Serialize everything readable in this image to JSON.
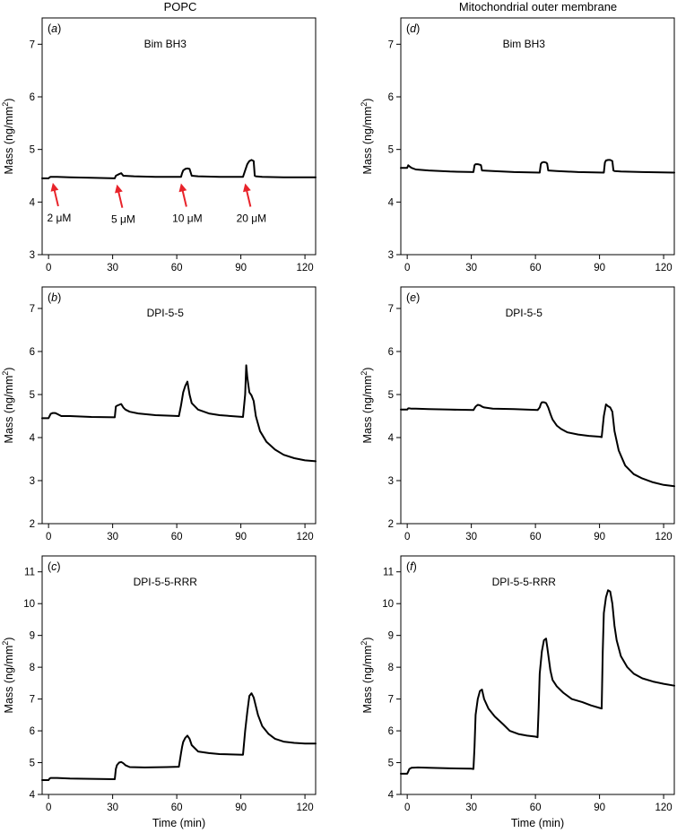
{
  "figure": {
    "col_titles": [
      "POPC",
      "Mitochondrial outer membrane"
    ]
  },
  "chart_data": [
    {
      "id": "a",
      "type": "line",
      "label": "(a)",
      "title": "Bim BH3",
      "xlabel": "",
      "ylabel": "Mass (ng/mm²)",
      "xlim": [
        -3,
        125
      ],
      "ylim": [
        3,
        7.5
      ],
      "xticks": [
        0,
        30,
        60,
        90,
        120
      ],
      "yticks": [
        3,
        4,
        5,
        6,
        7
      ],
      "annotations": [
        {
          "text": "2 μM",
          "x": 2,
          "y": 4.45
        },
        {
          "text": "5 μM",
          "x": 32,
          "y": 4.42
        },
        {
          "text": "10 μM",
          "x": 62,
          "y": 4.44
        },
        {
          "text": "20 μM",
          "x": 92,
          "y": 4.44
        }
      ],
      "annotation_color": "#e8232a",
      "x": [
        -3,
        0,
        0.5,
        1,
        2,
        4,
        10,
        20,
        31,
        31.5,
        32,
        33,
        34,
        35,
        40,
        50,
        62,
        62.5,
        63,
        64,
        65,
        66,
        67,
        70,
        80,
        91,
        92,
        93,
        94,
        95,
        96,
        96.5,
        97,
        100,
        110,
        125
      ],
      "y": [
        4.45,
        4.45,
        4.47,
        4.48,
        4.48,
        4.48,
        4.47,
        4.46,
        4.45,
        4.5,
        4.51,
        4.53,
        4.55,
        4.5,
        4.49,
        4.48,
        4.48,
        4.55,
        4.6,
        4.63,
        4.64,
        4.63,
        4.5,
        4.49,
        4.48,
        4.48,
        4.6,
        4.72,
        4.78,
        4.8,
        4.78,
        4.5,
        4.49,
        4.48,
        4.47,
        4.47
      ]
    },
    {
      "id": "b",
      "type": "line",
      "label": "(b)",
      "title": "DPI-5-5",
      "xlabel": "",
      "ylabel": "Mass (ng/mm²)",
      "xlim": [
        -3,
        125
      ],
      "ylim": [
        2,
        7.5
      ],
      "xticks": [
        0,
        30,
        60,
        90,
        120
      ],
      "yticks": [
        2,
        3,
        4,
        5,
        6,
        7
      ],
      "x": [
        -3,
        0,
        0.5,
        1,
        2,
        3,
        4,
        6,
        10,
        20,
        31,
        31.5,
        32,
        33,
        34,
        35,
        36,
        38,
        42,
        50,
        61,
        62,
        62.5,
        63,
        64,
        65,
        66,
        67,
        70,
        75,
        80,
        91,
        92,
        92.5,
        93,
        94,
        95,
        96,
        97,
        99,
        102,
        106,
        110,
        115,
        120,
        125
      ],
      "y": [
        4.45,
        4.45,
        4.5,
        4.55,
        4.57,
        4.57,
        4.55,
        4.5,
        4.5,
        4.48,
        4.47,
        4.72,
        4.74,
        4.76,
        4.78,
        4.7,
        4.65,
        4.6,
        4.56,
        4.52,
        4.5,
        4.75,
        4.9,
        5.05,
        5.2,
        5.3,
        5.0,
        4.8,
        4.65,
        4.56,
        4.52,
        4.48,
        5.0,
        5.68,
        5.4,
        5.05,
        4.98,
        4.85,
        4.5,
        4.15,
        3.9,
        3.72,
        3.6,
        3.52,
        3.47,
        3.45
      ]
    },
    {
      "id": "c",
      "type": "line",
      "label": "(c)",
      "title": "DPI-5-5-RRR",
      "xlabel": "Time (min)",
      "ylabel": "Mass (ng/mm²)",
      "xlim": [
        -3,
        125
      ],
      "ylim": [
        4,
        11.5
      ],
      "xticks": [
        0,
        30,
        60,
        90,
        120
      ],
      "yticks": [
        4,
        5,
        6,
        7,
        8,
        9,
        10,
        11
      ],
      "x": [
        -3,
        0,
        0.5,
        1,
        2,
        4,
        10,
        20,
        31,
        31.5,
        32,
        33,
        34,
        35,
        36,
        38,
        45,
        55,
        61,
        62,
        62.5,
        63,
        64,
        65,
        66,
        67,
        70,
        75,
        80,
        91,
        92,
        93,
        94,
        95,
        96,
        98,
        100,
        103,
        106,
        110,
        115,
        120,
        125
      ],
      "y": [
        4.45,
        4.45,
        4.5,
        4.52,
        4.52,
        4.52,
        4.5,
        4.49,
        4.48,
        4.8,
        4.92,
        5.0,
        5.02,
        4.98,
        4.92,
        4.86,
        4.85,
        4.86,
        4.87,
        5.3,
        5.5,
        5.65,
        5.78,
        5.85,
        5.75,
        5.55,
        5.35,
        5.3,
        5.27,
        5.25,
        6.0,
        6.6,
        7.1,
        7.18,
        7.05,
        6.5,
        6.15,
        5.9,
        5.75,
        5.66,
        5.62,
        5.6,
        5.6
      ]
    },
    {
      "id": "d",
      "type": "line",
      "label": "(d)",
      "title": "Bim BH3",
      "xlabel": "",
      "ylabel": "Mass (ng/mm²)",
      "xlim": [
        -3,
        125
      ],
      "ylim": [
        3,
        7.5
      ],
      "xticks": [
        0,
        30,
        60,
        90,
        120
      ],
      "yticks": [
        3,
        4,
        5,
        6,
        7
      ],
      "x": [
        -3,
        0,
        0.5,
        1,
        2,
        4,
        10,
        20,
        31,
        31.5,
        32,
        33,
        34,
        34.5,
        35,
        40,
        50,
        62,
        62.5,
        63,
        64,
        65,
        65.5,
        66,
        70,
        80,
        92,
        92.5,
        93,
        94,
        95,
        96,
        96.5,
        97,
        100,
        110,
        125
      ],
      "y": [
        4.65,
        4.65,
        4.7,
        4.68,
        4.65,
        4.62,
        4.6,
        4.58,
        4.57,
        4.7,
        4.72,
        4.72,
        4.71,
        4.7,
        4.6,
        4.59,
        4.57,
        4.56,
        4.72,
        4.75,
        4.76,
        4.75,
        4.73,
        4.6,
        4.59,
        4.57,
        4.56,
        4.75,
        4.79,
        4.8,
        4.8,
        4.78,
        4.6,
        4.59,
        4.58,
        4.57,
        4.56
      ]
    },
    {
      "id": "e",
      "type": "line",
      "label": "(e)",
      "title": "DPI-5-5",
      "xlabel": "",
      "ylabel": "Mass (ng/mm²)",
      "xlim": [
        -3,
        125
      ],
      "ylim": [
        2,
        7.5
      ],
      "xticks": [
        0,
        30,
        60,
        90,
        120
      ],
      "yticks": [
        2,
        3,
        4,
        5,
        6,
        7
      ],
      "x": [
        -3,
        0,
        0.5,
        1,
        2,
        4,
        10,
        20,
        31,
        32,
        33,
        34,
        35,
        36,
        40,
        50,
        61,
        62,
        62.5,
        63,
        64,
        65,
        66,
        67,
        68,
        70,
        72,
        75,
        80,
        85,
        90,
        91,
        92,
        93,
        94,
        95,
        96,
        97,
        99,
        102,
        106,
        110,
        115,
        120,
        125
      ],
      "y": [
        4.65,
        4.65,
        4.68,
        4.68,
        4.67,
        4.67,
        4.66,
        4.65,
        4.64,
        4.72,
        4.76,
        4.75,
        4.72,
        4.7,
        4.67,
        4.66,
        4.64,
        4.7,
        4.78,
        4.82,
        4.82,
        4.8,
        4.7,
        4.55,
        4.42,
        4.28,
        4.2,
        4.12,
        4.07,
        4.04,
        4.02,
        4.01,
        4.5,
        4.77,
        4.73,
        4.7,
        4.6,
        4.15,
        3.7,
        3.35,
        3.15,
        3.05,
        2.96,
        2.9,
        2.87
      ]
    },
    {
      "id": "f",
      "type": "line",
      "label": "(f)",
      "title": "DPI-5-5-RRR",
      "xlabel": "Time (min)",
      "ylabel": "Mass (ng/mm²)",
      "xlim": [
        -3,
        125
      ],
      "ylim": [
        4,
        11.5
      ],
      "xticks": [
        0,
        30,
        60,
        90,
        120
      ],
      "yticks": [
        4,
        5,
        6,
        7,
        8,
        9,
        10,
        11
      ],
      "x": [
        -3,
        0,
        0.5,
        1,
        2,
        5,
        10,
        20,
        30,
        31,
        31.5,
        32,
        33,
        34,
        35,
        36,
        38,
        41,
        45,
        48,
        52,
        56,
        60,
        61,
        61.5,
        62,
        63,
        64,
        65,
        66,
        67,
        68,
        70,
        73,
        77,
        82,
        86,
        90,
        91,
        91.5,
        92,
        93,
        94,
        95,
        96,
        97,
        98,
        100,
        103,
        106,
        110,
        115,
        120,
        125
      ],
      "y": [
        4.65,
        4.65,
        4.72,
        4.8,
        4.84,
        4.85,
        4.84,
        4.82,
        4.81,
        4.8,
        5.5,
        6.5,
        7.0,
        7.25,
        7.3,
        7.0,
        6.7,
        6.45,
        6.2,
        6.0,
        5.9,
        5.85,
        5.82,
        5.8,
        6.7,
        7.8,
        8.5,
        8.85,
        8.9,
        8.4,
        7.9,
        7.6,
        7.4,
        7.2,
        7.0,
        6.9,
        6.8,
        6.72,
        6.7,
        8.5,
        9.7,
        10.2,
        10.42,
        10.38,
        10.0,
        9.3,
        8.85,
        8.35,
        8.0,
        7.8,
        7.65,
        7.55,
        7.48,
        7.42
      ]
    }
  ]
}
